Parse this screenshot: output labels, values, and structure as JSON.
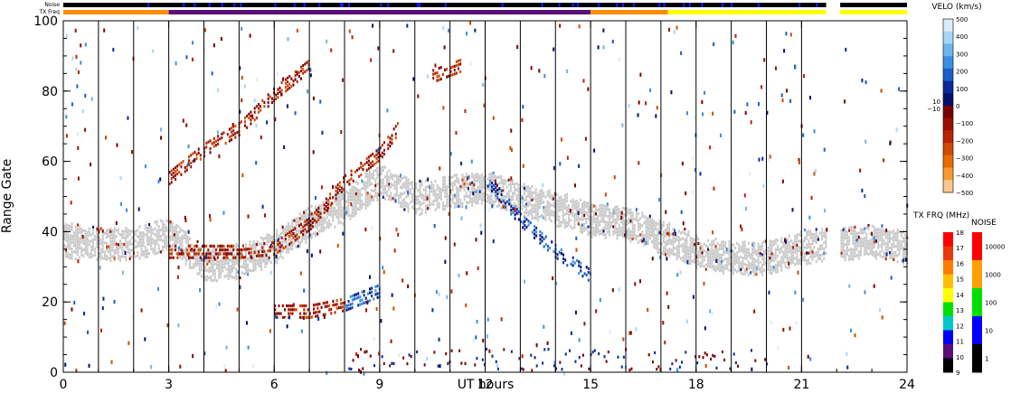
{
  "header": {
    "noise_label": "Noise",
    "txfreq_label": "TX Freq"
  },
  "chart_data": {
    "type": "heatmap",
    "xlabel": "UT hours",
    "ylabel": "Range Gate",
    "xlim": [
      0,
      24
    ],
    "ylim": [
      0,
      100
    ],
    "x_ticks": [
      "0",
      "3",
      "6",
      "9",
      "12",
      "15",
      "18",
      "21",
      "24"
    ],
    "y_ticks": [
      "0",
      "20",
      "40",
      "60",
      "80",
      "100"
    ],
    "scan_boundaries_hours": [
      1,
      2,
      3,
      4,
      5,
      6,
      7,
      8,
      9,
      10,
      11,
      12,
      13,
      14,
      15,
      16,
      17,
      18,
      19,
      20,
      21
    ],
    "noise_bar": {
      "segments": [
        {
          "start": 0,
          "end": 21.7,
          "color": "#000000"
        },
        {
          "start": 22.1,
          "end": 24,
          "color": "#000000"
        }
      ]
    },
    "tx_freq_bar": {
      "segments": [
        {
          "start": 0,
          "end": 3,
          "color": "#ff8c00"
        },
        {
          "start": 3,
          "end": 15,
          "color": "#5a0f78"
        },
        {
          "start": 15,
          "end": 17.2,
          "color": "#ff8c00"
        },
        {
          "start": 17.2,
          "end": 21.7,
          "color": "#ffff00"
        },
        {
          "start": 22.1,
          "end": 24,
          "color": "#ffff00"
        }
      ]
    },
    "velocity_scale": {
      "title": "VELO (km/s)",
      "ticks": [
        "500",
        "400",
        "300",
        "200",
        "100",
        "0",
        "−100",
        "−200",
        "−300",
        "−400",
        "−500"
      ],
      "inner_labels": [
        "10",
        "−10"
      ],
      "colors": [
        "#d8eefc",
        "#a8d6f8",
        "#6cb6ef",
        "#3a8fe0",
        "#1a5ec8",
        "#0a2a9a",
        "#000f6e",
        "#7a0000",
        "#9c0f00",
        "#b82400",
        "#d04a00",
        "#e86c00",
        "#f79a30",
        "#f9c890"
      ]
    },
    "txfreq_scale": {
      "title": "TX FRQ (MHz)",
      "ticks": [
        "18",
        "17",
        "16",
        "15",
        "14",
        "13",
        "12",
        "11",
        "10",
        "9"
      ],
      "colors": [
        "#ff0000",
        "#e8380c",
        "#ff7a00",
        "#ffc000",
        "#ffff00",
        "#00e000",
        "#00c8c8",
        "#0000ff",
        "#5a0f78",
        "#000000"
      ]
    },
    "noise_scale": {
      "title": "NOISE",
      "ticks": [
        "10000",
        "1000",
        "100",
        "10",
        "1"
      ],
      "colors": [
        "#ff0000",
        "#ffa000",
        "#00e000",
        "#0000ff",
        "#000000"
      ]
    },
    "series": [
      {
        "name": "",
        "kind": "ground-scatter",
        "points": [
          [
            0,
            38
          ],
          [
            1,
            37
          ],
          [
            2,
            37
          ],
          [
            3,
            40
          ],
          [
            4,
            31
          ],
          [
            5,
            32
          ],
          [
            6,
            36
          ],
          [
            7,
            43
          ],
          [
            8,
            48
          ],
          [
            9,
            55
          ],
          [
            10,
            50
          ],
          [
            11,
            52
          ],
          [
            12,
            53
          ],
          [
            15,
            44
          ],
          [
            16,
            43
          ],
          [
            17,
            39
          ],
          [
            18,
            35
          ],
          [
            19,
            33
          ],
          [
            20,
            33
          ],
          [
            21,
            36
          ],
          [
            23,
            38
          ],
          [
            24,
            36
          ]
        ]
      },
      {
        "name": "",
        "kind": "ionospheric-scatter",
        "points": [
          [
            3,
            56
          ],
          [
            4,
            64
          ],
          [
            5,
            70
          ],
          [
            6,
            80
          ],
          [
            7,
            88
          ]
        ]
      },
      {
        "name": "",
        "kind": "ionospheric-scatter",
        "points": [
          [
            3,
            35
          ],
          [
            5,
            35
          ],
          [
            6,
            36
          ],
          [
            7,
            43
          ],
          [
            8,
            55
          ],
          [
            9,
            63
          ],
          [
            9.5,
            70
          ]
        ]
      },
      {
        "name": "",
        "kind": "ionospheric-scatter",
        "points": [
          [
            6,
            18
          ],
          [
            7,
            18
          ],
          [
            8,
            20
          ],
          [
            9,
            24
          ]
        ]
      },
      {
        "name": "",
        "kind": "ionospheric-scatter",
        "points": [
          [
            12,
            56
          ],
          [
            13,
            44
          ],
          [
            14,
            35
          ],
          [
            15,
            28
          ]
        ]
      },
      {
        "name": "",
        "kind": "ionospheric-scatter",
        "points": [
          [
            10.5,
            85
          ],
          [
            11.3,
            88
          ]
        ]
      },
      {
        "name": "",
        "kind": "near-range",
        "points": [
          [
            8,
            1
          ],
          [
            12,
            1
          ],
          [
            16,
            1
          ],
          [
            20,
            1
          ]
        ]
      }
    ]
  }
}
